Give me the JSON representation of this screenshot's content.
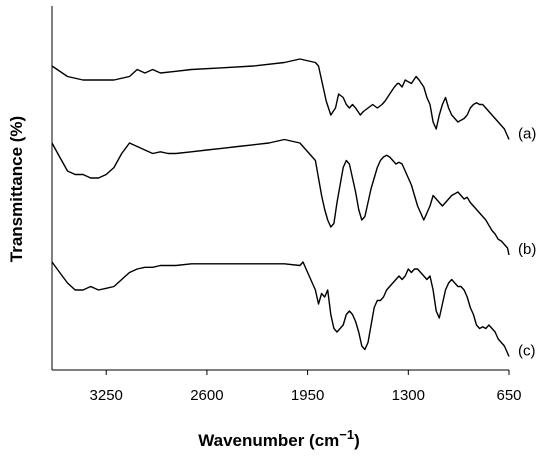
{
  "chart_data": {
    "type": "line",
    "title": "",
    "xlabel": "Wavenumber (cm−1)",
    "xlabel_main": "Wavenumber (cm",
    "xlabel_exp": "−1",
    "xlabel_close": ")",
    "ylabel": "Transmittance (%)",
    "xlim": [
      3600,
      650
    ],
    "x_reversed": true,
    "ylim": [
      0,
      100
    ],
    "y_ticks_shown": false,
    "grid": false,
    "legend": "none",
    "line_color": "#000000",
    "xticks": [
      3250,
      2600,
      1950,
      1300,
      650
    ],
    "xtick_labels": [
      "3250",
      "2600",
      "1950",
      "1300",
      "650"
    ],
    "series": [
      {
        "name": "(a)",
        "x": [
          3600,
          3500,
          3400,
          3300,
          3200,
          3100,
          3050,
          3000,
          2950,
          2900,
          2800,
          2700,
          2500,
          2300,
          2100,
          2000,
          1900,
          1880,
          1860,
          1830,
          1800,
          1770,
          1750,
          1720,
          1700,
          1680,
          1660,
          1640,
          1610,
          1590,
          1560,
          1530,
          1500,
          1470,
          1450,
          1420,
          1390,
          1380,
          1370,
          1360,
          1340,
          1320,
          1300,
          1280,
          1250,
          1230,
          1200,
          1180,
          1160,
          1140,
          1120,
          1100,
          1080,
          1060,
          1040,
          1020,
          1000,
          980,
          960,
          940,
          920,
          900,
          880,
          860,
          840,
          820,
          800,
          780,
          760,
          740,
          720,
          700,
          680,
          660,
          650
        ],
        "y": [
          84,
          81,
          80,
          80,
          80,
          81,
          83,
          82,
          83,
          82,
          82.5,
          83,
          83.5,
          84,
          85,
          86,
          85,
          84,
          80,
          74,
          70,
          72,
          76,
          75,
          73,
          72,
          73,
          72,
          70,
          71,
          72,
          73,
          72,
          73,
          74,
          76,
          78,
          78.5,
          79,
          79,
          78,
          80,
          79.5,
          79,
          81,
          80,
          78,
          75,
          73,
          68,
          66,
          70,
          73,
          75,
          72,
          70,
          69,
          68,
          68.5,
          69,
          70,
          72,
          73,
          73.5,
          73,
          73,
          72,
          71,
          70,
          69,
          68,
          67,
          66,
          64,
          63
        ]
      },
      {
        "name": "(b)",
        "x": [
          3600,
          3550,
          3500,
          3450,
          3400,
          3350,
          3300,
          3250,
          3200,
          3150,
          3100,
          3050,
          3000,
          2950,
          2900,
          2850,
          2800,
          2700,
          2600,
          2500,
          2400,
          2300,
          2200,
          2100,
          2000,
          1900,
          1880,
          1860,
          1840,
          1820,
          1800,
          1780,
          1760,
          1740,
          1720,
          1700,
          1680,
          1660,
          1640,
          1620,
          1600,
          1580,
          1560,
          1540,
          1520,
          1500,
          1480,
          1460,
          1440,
          1420,
          1400,
          1380,
          1360,
          1340,
          1320,
          1300,
          1280,
          1260,
          1240,
          1220,
          1200,
          1180,
          1160,
          1140,
          1120,
          1100,
          1080,
          1060,
          1040,
          1020,
          1000,
          980,
          960,
          940,
          920,
          900,
          880,
          860,
          840,
          820,
          800,
          780,
          760,
          740,
          720,
          700,
          680,
          660,
          650
        ],
        "y": [
          62,
          58,
          54,
          53,
          53,
          52,
          52,
          53,
          55,
          59,
          62,
          61,
          60,
          59,
          59.5,
          59,
          59,
          59.5,
          60,
          60.5,
          61,
          61.5,
          62,
          63,
          62,
          57,
          52,
          47,
          43,
          40,
          38,
          39,
          45,
          50,
          55,
          57,
          56,
          52,
          48,
          43,
          40,
          41,
          45,
          49,
          52,
          55,
          57,
          58,
          58.5,
          58,
          57,
          56,
          56.5,
          56,
          54,
          52,
          50,
          47,
          44,
          42,
          40,
          42,
          44,
          47,
          46,
          45,
          44,
          45,
          46,
          47,
          47.5,
          48,
          47,
          46,
          46.5,
          45,
          44,
          43,
          42,
          41,
          40,
          38.5,
          37,
          36,
          34.5,
          34,
          33,
          32,
          30
        ]
      },
      {
        "name": "(c)",
        "x": [
          3600,
          3550,
          3500,
          3450,
          3400,
          3350,
          3300,
          3250,
          3200,
          3150,
          3100,
          3050,
          3000,
          2950,
          2900,
          2800,
          2700,
          2600,
          2500,
          2400,
          2300,
          2200,
          2100,
          2000,
          1980,
          1960,
          1940,
          1920,
          1900,
          1880,
          1860,
          1840,
          1820,
          1800,
          1780,
          1760,
          1740,
          1720,
          1700,
          1680,
          1660,
          1640,
          1620,
          1600,
          1580,
          1560,
          1540,
          1520,
          1500,
          1480,
          1460,
          1440,
          1420,
          1400,
          1380,
          1360,
          1340,
          1320,
          1300,
          1280,
          1260,
          1240,
          1220,
          1200,
          1180,
          1160,
          1140,
          1120,
          1100,
          1080,
          1060,
          1040,
          1020,
          1000,
          980,
          960,
          940,
          920,
          900,
          880,
          860,
          840,
          820,
          800,
          780,
          760,
          740,
          720,
          700,
          680,
          660,
          650
        ],
        "y": [
          28,
          25,
          22,
          20,
          20,
          21,
          20,
          20.5,
          21,
          23,
          25,
          26,
          26.5,
          26.5,
          27,
          27,
          27.5,
          27.5,
          27.5,
          27.5,
          27.5,
          27.5,
          27.5,
          27,
          28,
          26,
          24,
          22,
          20,
          16,
          19,
          18,
          20,
          13,
          9,
          8,
          9,
          10,
          13,
          14,
          13,
          11,
          8,
          4,
          3,
          5,
          10,
          15,
          17,
          17,
          18,
          20,
          21,
          22,
          23,
          24,
          23,
          24,
          26,
          25,
          26,
          26,
          25,
          24,
          23,
          24,
          20,
          14,
          12,
          16,
          20,
          22,
          23,
          22,
          21,
          21,
          20,
          18,
          15,
          13,
          10,
          9,
          9.5,
          9,
          10,
          9,
          8,
          6,
          5,
          4,
          2,
          1
        ]
      }
    ]
  }
}
